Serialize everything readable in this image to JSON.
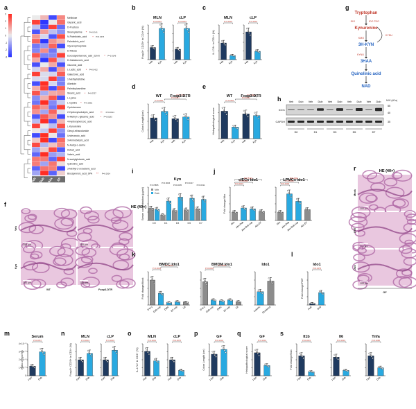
{
  "panels": {
    "a": "a",
    "b": "b",
    "c": "c",
    "d": "d",
    "e": "e",
    "f": "f",
    "g": "g",
    "h": "h",
    "i": "i",
    "j": "j",
    "k": "k",
    "l": "l",
    "m": "m",
    "n": "n",
    "o": "o",
    "p": "p",
    "q": "q",
    "r": "r",
    "s": "s"
  },
  "heatmap": {
    "columns": [
      "Veh",
      "Dub",
      "Abx",
      "EF"
    ],
    "scale": [
      "3",
      "2",
      "1",
      "0",
      "-1",
      "-2",
      "-3"
    ],
    "metabolites": [
      {
        "name": "Melibiose",
        "stars": "",
        "p": ""
      },
      {
        "name": "Glyceric_acid",
        "stars": "",
        "p": ""
      },
      {
        "name": "D-Fructose",
        "stars": "",
        "p": ""
      },
      {
        "name": "Stearoylamine",
        "stars": "*",
        "p": "P=0.0141"
      },
      {
        "name": "N-Palmitoleic_acid",
        "stars": "*",
        "p": "P=0.0476"
      },
      {
        "name": "Palmitoleic_acid",
        "stars": "",
        "p": ""
      },
      {
        "name": "Glycerophosphate",
        "stars": "",
        "p": ""
      },
      {
        "name": "D-Ribose",
        "stars": "",
        "p": ""
      },
      {
        "name": "Docosapentaenoic_acid_22n-6",
        "stars": "*",
        "p": "P=0.0146"
      },
      {
        "name": "D-Galacturonic_acid",
        "stars": "",
        "p": ""
      },
      {
        "name": "Gluconic_acid",
        "stars": "",
        "p": ""
      },
      {
        "name": "L-Lactic_acid",
        "stars": "*",
        "p": "P=0.0412"
      },
      {
        "name": "Galactonic_acid",
        "stars": "",
        "p": ""
      },
      {
        "name": "1-Methylhistidine",
        "stars": "",
        "p": ""
      },
      {
        "name": "Allantoin",
        "stars": "",
        "p": ""
      },
      {
        "name": "Palmitoylcarnitine",
        "stars": "",
        "p": ""
      },
      {
        "name": "Stearic_acid",
        "stars": "*",
        "p": "P=0.0327"
      },
      {
        "name": "L-Lysine",
        "stars": "",
        "p": ""
      },
      {
        "name": "L-Cystine",
        "stars": "*",
        "p": "P=0.0381"
      },
      {
        "name": "Cyclohexane",
        "stars": "",
        "p": ""
      },
      {
        "name": "2-Hydroxyisobutyric_acid",
        "stars": "**",
        "p": "P=0.0014"
      },
      {
        "name": "N-Methyl-L-glutamic_acid",
        "stars": "*",
        "p": "P=0.0183"
      },
      {
        "name": "4-Hydroxybenzoic_acid",
        "stars": "",
        "p": ""
      },
      {
        "name": "L-Kynurenine",
        "stars": "",
        "p": ""
      },
      {
        "name": "Oleoyl-ethanolamide",
        "stars": "",
        "p": ""
      },
      {
        "name": "Undecanoic_acid",
        "stars": "",
        "p": ""
      },
      {
        "name": "3-Aminobutyric_acid",
        "stars": "",
        "p": ""
      },
      {
        "name": "N-Acetyl-L-serine",
        "stars": "",
        "p": ""
      },
      {
        "name": "Kebab_acid",
        "stars": "",
        "p": ""
      },
      {
        "name": "Valeric_acid",
        "stars": "",
        "p": ""
      },
      {
        "name": "N-acetylglutamic_acid",
        "stars": "",
        "p": ""
      },
      {
        "name": "Quinolinic_acid",
        "stars": "",
        "p": ""
      },
      {
        "name": "3-Methyl-2-oxovaleric_acid",
        "stars": "",
        "p": ""
      },
      {
        "name": "Biocaprenoic_acid_SPA",
        "stars": "**",
        "p": "P=0.0014"
      }
    ]
  },
  "panel_b": {
    "titles": [
      "MLN",
      "cLP"
    ],
    "ylabel": "Foxp3+ CD25+ in CD4+ (%)",
    "groups": [
      "Veh",
      "Kyn"
    ],
    "pvals": [
      "P<0.0001",
      "P<0.0001"
    ],
    "series": [
      {
        "values": [
          7,
          18
        ]
      },
      {
        "values": [
          6,
          18
        ]
      }
    ],
    "ymax": 20
  },
  "panel_c": {
    "titles": [
      "MLN",
      "cLP"
    ],
    "ylabel": "IL-17A+ in CD4+ (%)",
    "groups": [
      "Veh",
      "Kyn"
    ],
    "pvals": [
      "P<0.0001",
      "P<0.0001"
    ],
    "series": [
      {
        "values": [
          12,
          3
        ]
      },
      {
        "values": [
          20,
          6
        ]
      }
    ],
    "ymax": 25
  },
  "panel_d": {
    "titles": [
      "WT",
      "Foxp3-DTR"
    ],
    "ylabel": "Colon Length (cm)",
    "groups": [
      "Veh",
      "Kyn",
      "Veh",
      "Kyn"
    ],
    "pvals": [
      "P<0.0001",
      "P=0.0021",
      "P=0.4735"
    ],
    "values": [
      4.8,
      6.3,
      4.6,
      5.0
    ],
    "ymax": 8
  },
  "panel_e": {
    "titles": [
      "WT",
      "Foxp3-DTR"
    ],
    "ylabel": "Histopathological score",
    "groups": [
      "Veh",
      "Kyn",
      "Veh",
      "Kyn"
    ],
    "pvals": [
      "P<0.0001",
      "P=0.0042",
      "P=0.5689"
    ],
    "values": [
      9.5,
      4.0,
      8.6,
      8.0
    ],
    "ymax": 12
  },
  "pathway": {
    "nodes": [
      "Tryptophan",
      "Kynurenine",
      "3H-KYN",
      "3HAA",
      "Quinolinic acid",
      "NAD"
    ],
    "enzymes": [
      "IDO",
      "IDO TDO",
      "KMO",
      "KMO",
      "KYNU",
      "KYNU",
      "HAAO"
    ]
  },
  "panel_h": {
    "lanes": [
      "Veh",
      "Dub",
      "Veh",
      "Dub",
      "Veh",
      "Dub",
      "Veh",
      "Dub",
      "Veh",
      "Dub"
    ],
    "days": [
      "D0",
      "D1",
      "D3",
      "D5",
      "D7"
    ],
    "rows": [
      "IDO1",
      "GAPDH"
    ],
    "mw_title": "MW (kDa)",
    "mw": [
      "55",
      "40",
      "35"
    ]
  },
  "panel_i": {
    "title": "Kyn",
    "ylabel": "Serum concentration (μg/ml)",
    "categories": [
      "D0",
      "D1",
      "D3",
      "D5",
      "D7"
    ],
    "legend": [
      "Veh",
      "Dub"
    ],
    "pvals": [
      "P=0.5895",
      "P=0.0026",
      "P=0.0005",
      "P=0.0147",
      "P=0.0311"
    ],
    "series": [
      {
        "name": "Veh",
        "values": [
          2.2,
          1.0,
          1.8,
          1.9,
          2.1
        ]
      },
      {
        "name": "Dub",
        "values": [
          2.0,
          3.5,
          4.2,
          4.0,
          3.8
        ]
      }
    ],
    "ymax": 6
  },
  "panel_j": {
    "titles": [
      "cIECs Ido1",
      "LPMCs Ido1"
    ],
    "ylabel": "Fold change/Abx",
    "groups": [
      "Abx",
      "Abx-Dub",
      "Abx-Dub-sup",
      "Abx-EF"
    ],
    "pvals": [
      "P=0.0007",
      "P=0.0044",
      "P=0.5131",
      "P=0.0009",
      "P=0.0093",
      "P=0.0211"
    ],
    "series": [
      {
        "values": [
          1.0,
          1.5,
          1.4,
          1.1
        ]
      },
      {
        "values": [
          1.0,
          3.2,
          2.3,
          1.3
        ]
      }
    ],
    "ymax": 4
  },
  "panel_k": {
    "titles": [
      "BMDC Ido1",
      "BMDM Ido1",
      "Ido1"
    ],
    "ylabel": "Fold change/Mock",
    "groups1": [
      "IFN-γ",
      "Dub-sup",
      "DMC",
      "EF-sup",
      "LB"
    ],
    "groups3": [
      "Colonic",
      "Duodenal"
    ],
    "pvals": [
      "P<0.0001",
      "P<0.0001",
      "P=0.0002",
      "P<0.0001",
      "P=0.0097"
    ],
    "series": [
      {
        "values": [
          6.0,
          2.8,
          0.6,
          0.8,
          0.7
        ]
      },
      {
        "values": [
          14.0,
          3.0,
          2.5,
          3.0,
          2.0
        ]
      },
      {
        "values": [
          1.0,
          1.8
        ]
      }
    ],
    "ymax": [
      8,
      20,
      2.5
    ]
  },
  "panel_l": {
    "title": "Ido1",
    "ylabel": "Fold change/FMT",
    "groups": [
      "FMT",
      "Dub"
    ],
    "pvals": [
      "P=0.0473"
    ],
    "values": [
      1.0,
      7.5
    ],
    "ymax": 20
  },
  "panel_r": {
    "title": "HE (40×)",
    "rows": [
      "Mock",
      "FMT",
      "Dub"
    ],
    "group": "GF",
    "scalebar": "100 μm"
  },
  "panel_f": {
    "title": "HE (40×)",
    "rows": [
      "Veh",
      "Kyn"
    ],
    "cols": [
      "WT",
      "Foxp3-DTR"
    ],
    "scalebar": "100 μm"
  },
  "panel_m": {
    "title": "Serum",
    "ylabel": "Ratio of Kyn/Trp",
    "groups": [
      "FMT",
      "Dub"
    ],
    "pvals": [
      "P=0.0057"
    ],
    "values": [
      1.2,
      3.0
    ],
    "ymax": 4,
    "ticks": [
      "0",
      "1×10⁻²",
      "2×10⁻²",
      "3×10⁻²",
      "4×10⁻²"
    ]
  },
  "panel_n": {
    "titles": [
      "MLN",
      "cLP"
    ],
    "ylabel": "Foxp3+ CD25+ in CD4+ (%)",
    "groups": [
      "FMT",
      "Dub"
    ],
    "pvals": [
      "P<0.0001",
      "P<0.0001"
    ],
    "series": [
      {
        "values": [
          15,
          21
        ]
      },
      {
        "values": [
          15,
          24
        ]
      }
    ],
    "ymax": 30
  },
  "panel_o": {
    "titles": [
      "MLN",
      "cLP"
    ],
    "ylabel": "IL-17A+ in CD4+ (%)",
    "groups": [
      "FMT",
      "Dub"
    ],
    "pvals": [
      "P<0.0001",
      "P=0.0076"
    ],
    "series": [
      {
        "values": [
          23,
          14
        ]
      },
      {
        "values": [
          15,
          5
        ]
      }
    ],
    "ymax": 30
  },
  "panel_p": {
    "title": "GF",
    "ylabel": "Colon Length (cm)",
    "groups": [
      "FMT",
      "Dub"
    ],
    "pvals": [
      "P=0.0002"
    ],
    "values": [
      5.4,
      6.6
    ],
    "ymax": 8
  },
  "panel_q": {
    "title": "GF",
    "ylabel": "Histopathological score",
    "groups": [
      "FMT",
      "Dub"
    ],
    "pvals": [
      "P<0.0001"
    ],
    "values": [
      7.2,
      3.2
    ],
    "ymax": 10
  },
  "panel_s": {
    "titles": [
      "Il1b",
      "Il6",
      "Tnfa"
    ],
    "ylabel": "Fold change/Dub",
    "groups": [
      "FMT",
      "Dub"
    ],
    "pvals": [
      "P=0.0091",
      "P=0.0019",
      "P=0.0086"
    ],
    "series": [
      {
        "values": [
          5.0,
          1.0
        ]
      },
      {
        "values": [
          3.5,
          1.0
        ]
      },
      {
        "values": [
          2.5,
          1.0
        ]
      }
    ],
    "ymax": [
      8,
      6,
      4
    ]
  },
  "colors": {
    "dark": "#1f3a5f",
    "light": "#29a9e0",
    "grey": "#8c8c8c",
    "he_bg": "#e9c7df",
    "he_tissue": "#b06aa6",
    "pval_red": "#c0392b",
    "pathway_red": "#c0392b",
    "pathway_blue": "#1f5fbf"
  }
}
